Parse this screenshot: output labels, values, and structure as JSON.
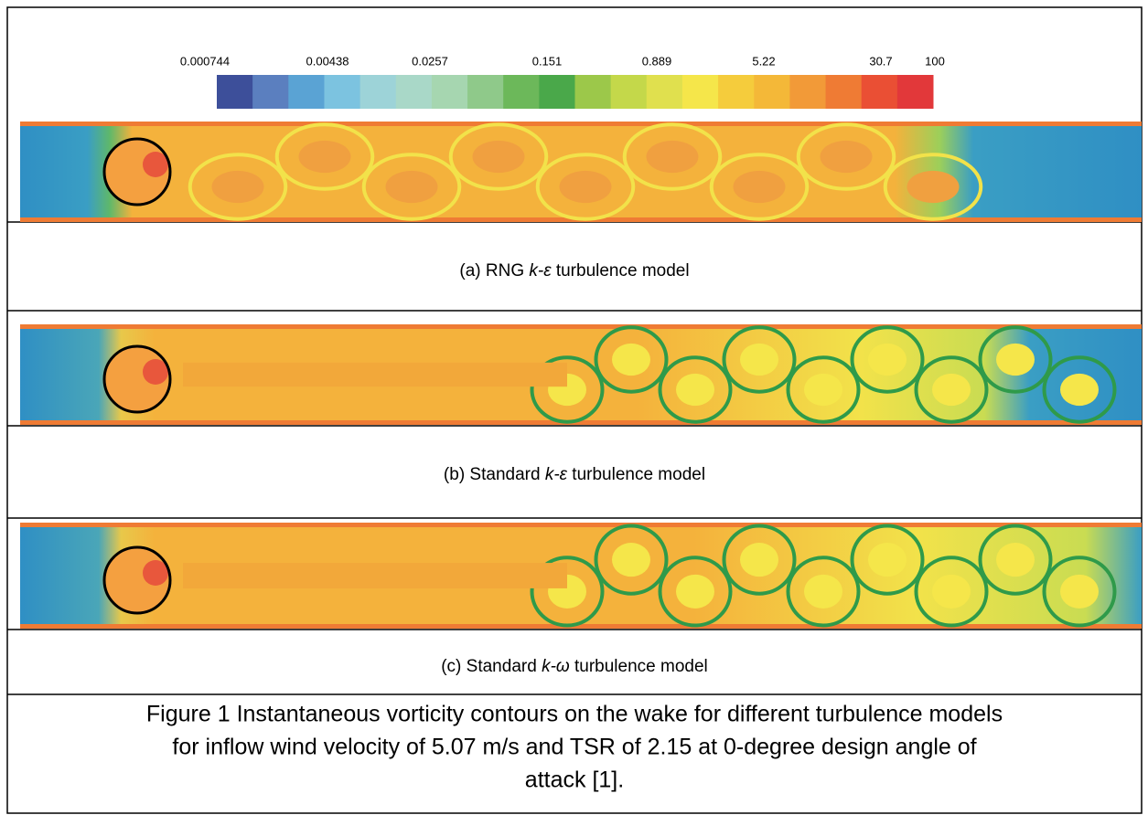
{
  "colorbar": {
    "labels": [
      0.000744,
      0.00438,
      0.0257,
      0.151,
      0.889,
      5.22,
      30.7,
      100
    ]
  },
  "panels": [
    {
      "caption": {
        "prefix": "(a) RNG ",
        "model": "k-",
        "symbol": "ε",
        "suffix": " turbulence model"
      }
    },
    {
      "caption": {
        "prefix": "(b) Standard ",
        "model": "k-",
        "symbol": "ε",
        "suffix": " turbulence model"
      }
    },
    {
      "caption": {
        "prefix": "(c) Standard ",
        "model": "k-",
        "symbol": "ω",
        "suffix": " turbulence model"
      }
    }
  ],
  "figure_caption": [
    "Figure 1 Instantaneous vorticity contours on the wake for different turbulence models",
    "for inflow wind velocity of 5.07 m/s and TSR of 2.15 at 0-degree design angle of",
    "attack [1]."
  ]
}
